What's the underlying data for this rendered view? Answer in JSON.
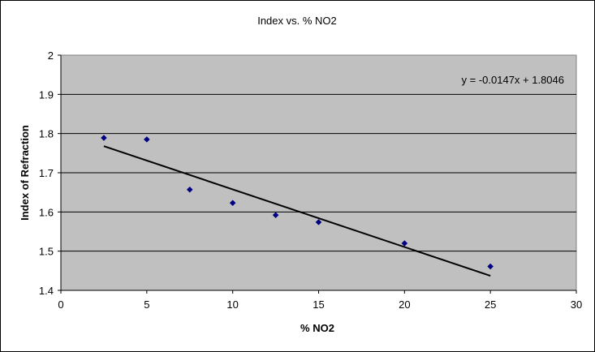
{
  "chart_data": {
    "type": "scatter",
    "title": "Index vs. % NO2",
    "xlabel": "% NO2",
    "ylabel": "Index of Refraction",
    "xlim": [
      0,
      30
    ],
    "ylim": [
      1.4,
      2
    ],
    "xticks": [
      "0",
      "5",
      "10",
      "15",
      "20",
      "25",
      "30"
    ],
    "yticks": [
      "1.4",
      "1.5",
      "1.6",
      "1.7",
      "1.8",
      "1.9",
      "2"
    ],
    "grid": "horizontal major gridlines",
    "plot_background": "#C0C0C0",
    "marker_color": "#000080",
    "series": [
      {
        "x": [
          2.5,
          5,
          7.5,
          10,
          12.5,
          15,
          20,
          25
        ],
        "y": [
          1.789,
          1.785,
          1.657,
          1.623,
          1.592,
          1.574,
          1.52,
          1.461
        ]
      }
    ],
    "trendline": {
      "type": "linear",
      "slope": -0.0147,
      "intercept": 1.8046,
      "x_range": [
        2.5,
        25
      ],
      "equation_label": "y = -0.0147x + 1.8046"
    }
  }
}
